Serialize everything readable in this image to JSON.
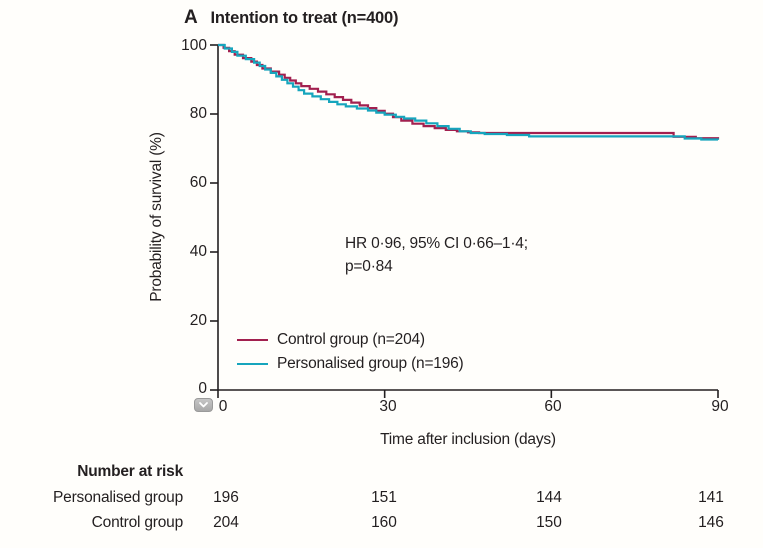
{
  "panel": {
    "letter": "A",
    "title": "Intention to treat (n=400)"
  },
  "chart_data": {
    "type": "line",
    "subtype": "kaplan-meier-step",
    "title": "Intention to treat (n=400)",
    "xlabel": "Time after inclusion (days)",
    "ylabel": "Probability of survival (%)",
    "xlim": [
      0,
      90
    ],
    "ylim": [
      0,
      100
    ],
    "xticks": [
      "0",
      "30",
      "60",
      "90"
    ],
    "yticks": [
      "100",
      "80",
      "60",
      "40",
      "20",
      "0"
    ],
    "grid": false,
    "legend_position": "inside-bottom-left",
    "annotation": {
      "line1": "HR 0·96, 95% CI 0·66–1·4;",
      "line2": "p=0·84"
    },
    "axis_color": "#231f20",
    "series": [
      {
        "name": "Control group (n=204)",
        "color": "#a2204f",
        "points": [
          [
            0,
            100
          ],
          [
            1,
            99.2
          ],
          [
            2,
            98.2
          ],
          [
            3,
            97.2
          ],
          [
            4.5,
            96.2
          ],
          [
            6,
            95.2
          ],
          [
            7,
            94.2
          ],
          [
            8,
            93.2
          ],
          [
            9.5,
            92.3
          ],
          [
            11,
            91.4
          ],
          [
            12,
            90.5
          ],
          [
            13,
            89.7
          ],
          [
            14,
            88.9
          ],
          [
            15,
            88.1
          ],
          [
            16.5,
            87.3
          ],
          [
            18,
            86.5
          ],
          [
            19.5,
            85.7
          ],
          [
            21,
            84.9
          ],
          [
            22.5,
            84.1
          ],
          [
            24,
            83.3
          ],
          [
            25.5,
            82.5
          ],
          [
            27,
            81.7
          ],
          [
            28.5,
            80.9
          ],
          [
            30,
            80.1
          ],
          [
            31.5,
            79.1
          ],
          [
            33,
            78.1
          ],
          [
            35,
            77.2
          ],
          [
            37,
            76.5
          ],
          [
            39,
            75.9
          ],
          [
            41,
            75.4
          ],
          [
            43,
            75.0
          ],
          [
            45,
            74.7
          ],
          [
            47,
            74.5
          ],
          [
            82,
            73.4
          ],
          [
            86,
            73.0
          ],
          [
            90,
            72.9
          ]
        ]
      },
      {
        "name": "Personalised group (n=196)",
        "color": "#16a5bd",
        "points": [
          [
            0,
            100
          ],
          [
            1.2,
            99
          ],
          [
            2.5,
            98
          ],
          [
            3.5,
            96.9
          ],
          [
            5,
            95.9
          ],
          [
            6.5,
            94.9
          ],
          [
            7.5,
            93.9
          ],
          [
            8.5,
            92.9
          ],
          [
            9.5,
            91.9
          ],
          [
            10.5,
            90.9
          ],
          [
            11.5,
            89.9
          ],
          [
            12.5,
            88.9
          ],
          [
            13.5,
            87.9
          ],
          [
            14.5,
            86.9
          ],
          [
            15.5,
            85.9
          ],
          [
            17,
            85.1
          ],
          [
            18.5,
            84.3
          ],
          [
            20,
            83.5
          ],
          [
            21.5,
            82.8
          ],
          [
            23,
            82.2
          ],
          [
            25,
            81.6
          ],
          [
            27,
            81.0
          ],
          [
            28.5,
            80.4
          ],
          [
            30,
            79.8
          ],
          [
            32,
            79.2
          ],
          [
            33.5,
            78.7
          ],
          [
            35.5,
            78.1
          ],
          [
            37.5,
            77.3
          ],
          [
            39.5,
            76.5
          ],
          [
            41.5,
            75.7
          ],
          [
            43.5,
            75.0
          ],
          [
            45.5,
            74.5
          ],
          [
            48,
            74.2
          ],
          [
            52,
            73.9
          ],
          [
            56,
            73.5
          ],
          [
            84,
            72.9
          ],
          [
            87,
            72.6
          ],
          [
            90,
            72.5
          ]
        ]
      }
    ]
  },
  "risk_table": {
    "header": "Number at risk",
    "rows": [
      {
        "label": "Personalised group",
        "values": [
          "196",
          "151",
          "144",
          "141"
        ]
      },
      {
        "label": "Control group",
        "values": [
          "204",
          "160",
          "150",
          "146"
        ]
      }
    ]
  },
  "icons": {
    "collapse_badge": "chevron-down"
  }
}
